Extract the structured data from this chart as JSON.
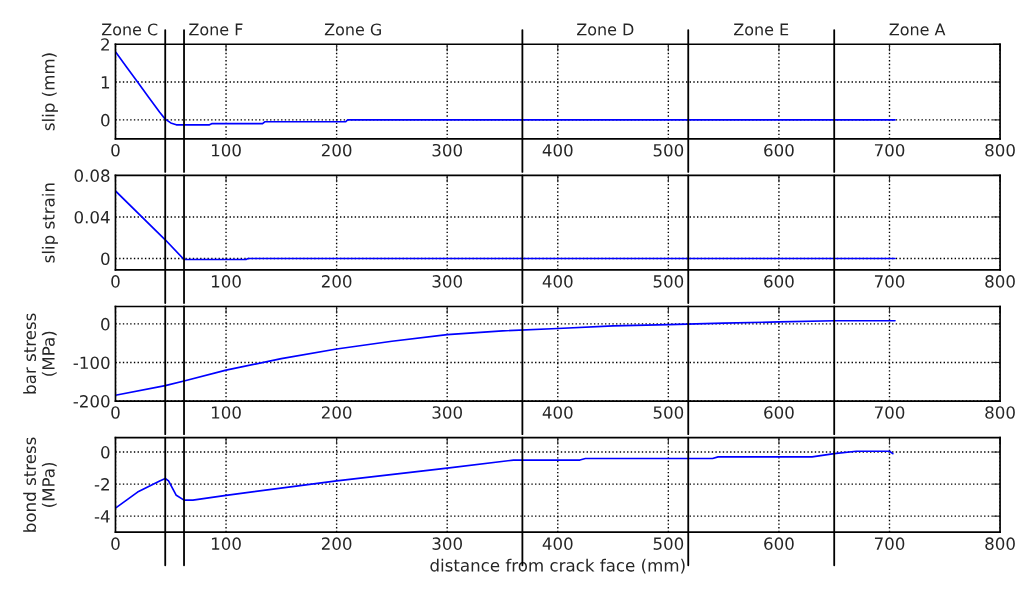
{
  "chart_data": [
    {
      "type": "line",
      "ylabel": "slip (mm)",
      "x": [
        0,
        10,
        20,
        30,
        40,
        45,
        50,
        55,
        85,
        87,
        133,
        135,
        208,
        210,
        705
      ],
      "series": [
        {
          "color": "#0000ff",
          "values": [
            1.8,
            1.4,
            1.0,
            0.6,
            0.2,
            0.02,
            -0.08,
            -0.13,
            -0.13,
            -0.1,
            -0.1,
            -0.05,
            -0.05,
            0,
            0
          ]
        }
      ],
      "xlim": [
        0,
        800
      ],
      "xticks": [
        0,
        100,
        200,
        300,
        400,
        500,
        600,
        700,
        800
      ],
      "ylim": [
        -0.5,
        2
      ],
      "yticks": [
        0,
        1,
        2
      ],
      "grid": true,
      "ref_lines": [
        {
          "axis": "x",
          "value": 45
        },
        {
          "axis": "x",
          "value": 62
        },
        {
          "axis": "x",
          "value": 368
        },
        {
          "axis": "x",
          "value": 518
        },
        {
          "axis": "x",
          "value": 650
        }
      ],
      "annotations": [
        "Zone C",
        "Zone F",
        "Zone G",
        "Zone D",
        "Zone E",
        "Zone A"
      ]
    },
    {
      "type": "line",
      "ylabel": "slip strain",
      "x": [
        0,
        45,
        62,
        118,
        120,
        705
      ],
      "series": [
        {
          "color": "#0000ff",
          "values": [
            0.065,
            0.018,
            -0.001,
            -0.001,
            0,
            0
          ]
        }
      ],
      "xlim": [
        0,
        800
      ],
      "xticks": [
        0,
        100,
        200,
        300,
        400,
        500,
        600,
        700,
        800
      ],
      "ylim": [
        -0.011,
        0.08
      ],
      "yticks": [
        0,
        0.04,
        0.08
      ],
      "grid": true,
      "ref_lines": [
        {
          "axis": "x",
          "value": 45
        },
        {
          "axis": "x",
          "value": 62
        },
        {
          "axis": "x",
          "value": 368
        },
        {
          "axis": "x",
          "value": 518
        },
        {
          "axis": "x",
          "value": 650
        }
      ]
    },
    {
      "type": "line",
      "ylabel": "bar stress\n(MPa)",
      "x": [
        0,
        45,
        62,
        100,
        150,
        200,
        250,
        300,
        350,
        400,
        450,
        500,
        550,
        600,
        650,
        705
      ],
      "series": [
        {
          "color": "#0000ff",
          "values": [
            -185,
            -160,
            -148,
            -120,
            -90,
            -65,
            -45,
            -28,
            -18,
            -12,
            -5,
            -2,
            2,
            5,
            8,
            8
          ]
        }
      ],
      "xlim": [
        0,
        800
      ],
      "xticks": [
        0,
        100,
        200,
        300,
        400,
        500,
        600,
        700,
        800
      ],
      "ylim": [
        -200,
        45
      ],
      "yticks": [
        -200,
        -100,
        0
      ],
      "grid": true,
      "ref_lines": [
        {
          "axis": "x",
          "value": 45
        },
        {
          "axis": "x",
          "value": 62
        },
        {
          "axis": "x",
          "value": 368
        },
        {
          "axis": "x",
          "value": 518
        },
        {
          "axis": "x",
          "value": 650
        }
      ]
    },
    {
      "type": "line",
      "ylabel": "bond stress\n(MPa)",
      "xlabel": "distance from crack face (mm)",
      "x": [
        0,
        20,
        40,
        45,
        48,
        55,
        62,
        70,
        100,
        200,
        300,
        360,
        420,
        425,
        540,
        545,
        630,
        650,
        670,
        700,
        703
      ],
      "series": [
        {
          "color": "#0000ff",
          "values": [
            -3.5,
            -2.5,
            -1.8,
            -1.65,
            -1.8,
            -2.7,
            -3.0,
            -3.0,
            -2.7,
            -1.8,
            -1.0,
            -0.5,
            -0.5,
            -0.4,
            -0.4,
            -0.3,
            -0.3,
            -0.1,
            0.05,
            0.05,
            -0.1
          ]
        }
      ],
      "xlim": [
        0,
        800
      ],
      "xticks": [
        0,
        100,
        200,
        300,
        400,
        500,
        600,
        700,
        800
      ],
      "ylim": [
        -5,
        0.9
      ],
      "yticks": [
        -4,
        -2,
        0
      ],
      "grid": true,
      "ref_lines": [
        {
          "axis": "x",
          "value": 45
        },
        {
          "axis": "x",
          "value": 62
        },
        {
          "axis": "x",
          "value": 368
        },
        {
          "axis": "x",
          "value": 518
        },
        {
          "axis": "x",
          "value": 650
        }
      ]
    }
  ]
}
